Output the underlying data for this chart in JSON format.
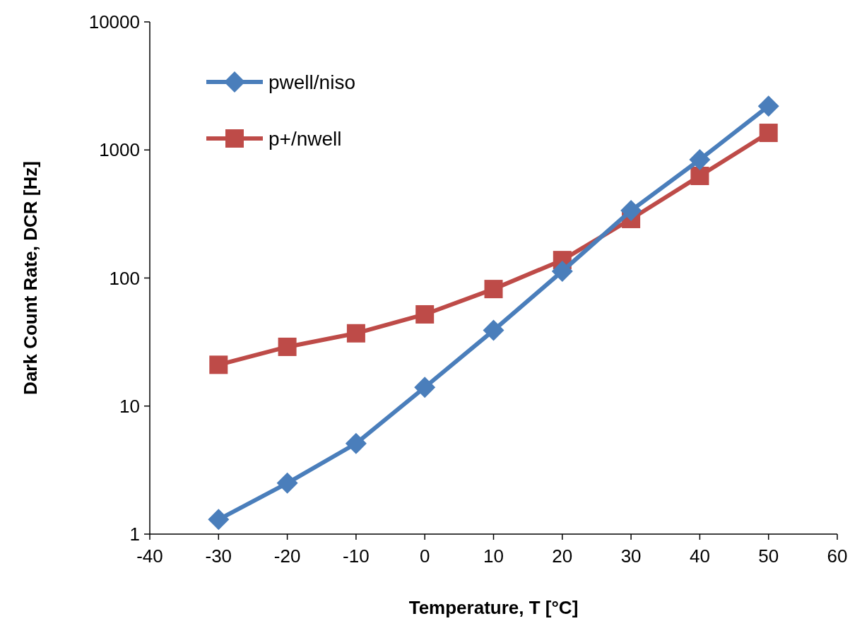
{
  "chart_data": {
    "type": "line",
    "xlabel": "Temperature, T [°C]",
    "ylabel": "Dark Count Rate, DCR [Hz]",
    "x": [
      -30,
      -20,
      -10,
      0,
      10,
      20,
      30,
      40,
      50
    ],
    "series": [
      {
        "name": "pwell/niso",
        "color": "#4a7ebb",
        "marker": "diamond",
        "values": [
          1.3,
          2.5,
          5.1,
          14,
          39,
          113,
          336,
          840,
          2200
        ]
      },
      {
        "name": "p+/nwell",
        "color": "#be4b48",
        "marker": "square",
        "values": [
          21,
          29,
          37,
          52,
          82,
          138,
          289,
          627,
          1360
        ]
      }
    ],
    "xlim": [
      -40,
      60
    ],
    "xticks": [
      -40,
      -30,
      -20,
      -10,
      0,
      10,
      20,
      30,
      40,
      50,
      60
    ],
    "ylim": [
      1,
      10000
    ],
    "yticks": [
      1,
      10,
      100,
      1000,
      10000
    ],
    "log": "y",
    "grid": false,
    "legend": "top left",
    "line_style": "solid"
  }
}
